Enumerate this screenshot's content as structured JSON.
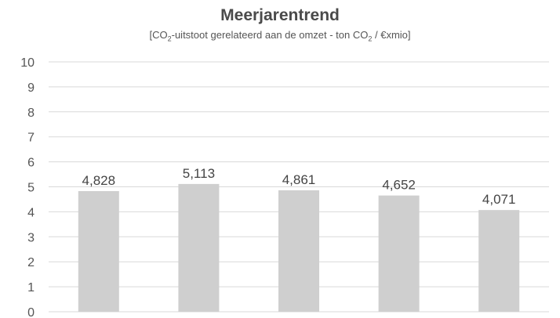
{
  "chart_data": {
    "type": "bar",
    "title": "Meerjarentrend",
    "subtitle": {
      "part1": "[CO",
      "sub1": "2",
      "part2": "-uitstoot gerelateerd aan de omzet - ton CO",
      "sub2": "2",
      "part3": " / €xmio]"
    },
    "categories": [
      "",
      "",
      "",
      "",
      ""
    ],
    "values": [
      4.828,
      5.113,
      4.861,
      4.652,
      4.071
    ],
    "value_labels": [
      "4,828",
      "5,113",
      "4,861",
      "4,652",
      "4,071"
    ],
    "ylim": [
      0,
      10
    ],
    "y_ticks": [
      0,
      1,
      2,
      3,
      4,
      5,
      6,
      7,
      8,
      9,
      10
    ],
    "grid": true,
    "legend": "none",
    "colors": {
      "bar": "#cfcfcf",
      "grid": "#d9d9d9",
      "text": "#444444"
    }
  }
}
